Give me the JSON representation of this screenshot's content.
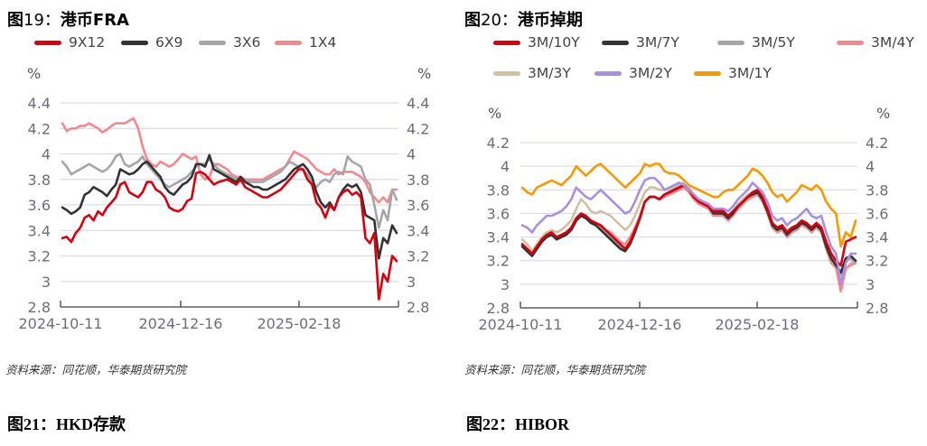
{
  "chart_data": [
    {
      "type": "line",
      "title": "图19：港币FRA",
      "ylabel_left": "%",
      "ylabel_right": "%",
      "ylim": [
        2.8,
        4.4
      ],
      "yticks": [
        "4.4",
        "4.2",
        "4",
        "3.8",
        "3.6",
        "3.4",
        "3.2",
        "3",
        "2.8"
      ],
      "xticks": [
        "2024-10-11",
        "2024-12-16",
        "2025-02-18"
      ],
      "grid": true,
      "legend_position": "top",
      "series": [
        {
          "name": "9X12",
          "color": "#d7000f",
          "values": [
            3.34,
            3.35,
            3.31,
            3.38,
            3.42,
            3.5,
            3.52,
            3.48,
            3.55,
            3.52,
            3.58,
            3.62,
            3.66,
            3.76,
            3.78,
            3.7,
            3.68,
            3.66,
            3.7,
            3.78,
            3.78,
            3.72,
            3.7,
            3.66,
            3.58,
            3.56,
            3.55,
            3.57,
            3.63,
            3.65,
            3.85,
            3.86,
            3.84,
            3.8,
            3.76,
            3.78,
            3.79,
            3.8,
            3.78,
            3.76,
            3.8,
            3.74,
            3.72,
            3.7,
            3.68,
            3.66,
            3.66,
            3.68,
            3.7,
            3.72,
            3.76,
            3.8,
            3.84,
            3.88,
            3.88,
            3.8,
            3.76,
            3.62,
            3.58,
            3.5,
            3.6,
            3.56,
            3.66,
            3.7,
            3.72,
            3.68,
            3.7,
            3.66,
            3.34,
            3.3,
            3.38,
            2.86,
            3.06,
            3.0,
            3.2,
            3.16
          ]
        },
        {
          "name": "6X9",
          "color": "#333333",
          "values": [
            3.58,
            3.56,
            3.53,
            3.55,
            3.58,
            3.68,
            3.7,
            3.74,
            3.72,
            3.7,
            3.67,
            3.72,
            3.76,
            3.88,
            3.86,
            3.84,
            3.85,
            3.88,
            3.92,
            3.94,
            3.9,
            3.86,
            3.82,
            3.74,
            3.7,
            3.68,
            3.72,
            3.76,
            3.78,
            3.82,
            3.92,
            3.92,
            3.9,
            3.99,
            3.88,
            3.86,
            3.84,
            3.82,
            3.8,
            3.78,
            3.82,
            3.78,
            3.76,
            3.74,
            3.74,
            3.72,
            3.72,
            3.74,
            3.76,
            3.78,
            3.8,
            3.84,
            3.88,
            3.9,
            3.92,
            3.88,
            3.82,
            3.7,
            3.62,
            3.58,
            3.62,
            3.56,
            3.66,
            3.72,
            3.76,
            3.74,
            3.76,
            3.7,
            3.52,
            3.5,
            3.48,
            3.18,
            3.34,
            3.3,
            3.44,
            3.38
          ]
        },
        {
          "name": "3X6",
          "color": "#a6a6a6",
          "values": [
            3.94,
            3.9,
            3.84,
            3.86,
            3.88,
            3.9,
            3.92,
            3.9,
            3.88,
            3.86,
            3.88,
            3.92,
            3.98,
            4.0,
            3.92,
            3.9,
            3.92,
            3.94,
            3.98,
            3.92,
            3.88,
            3.84,
            3.8,
            3.76,
            3.74,
            3.76,
            3.78,
            3.8,
            3.82,
            3.86,
            3.9,
            3.92,
            3.92,
            3.96,
            3.92,
            3.88,
            3.86,
            3.84,
            3.82,
            3.8,
            3.82,
            3.8,
            3.78,
            3.78,
            3.78,
            3.78,
            3.8,
            3.82,
            3.84,
            3.86,
            3.9,
            3.94,
            3.92,
            3.9,
            3.88,
            3.84,
            3.78,
            3.74,
            3.78,
            3.8,
            3.78,
            3.84,
            3.86,
            3.84,
            3.98,
            3.94,
            3.92,
            3.9,
            3.8,
            3.76,
            3.6,
            3.42,
            3.56,
            3.48,
            3.72,
            3.64
          ]
        },
        {
          "name": "1X4",
          "color": "#f4888f",
          "values": [
            4.24,
            4.18,
            4.2,
            4.2,
            4.22,
            4.22,
            4.24,
            4.22,
            4.2,
            4.17,
            4.19,
            4.22,
            4.24,
            4.24,
            4.24,
            4.26,
            4.28,
            4.2,
            4.06,
            3.96,
            3.92,
            3.9,
            3.94,
            3.92,
            3.9,
            3.92,
            3.96,
            4.0,
            3.98,
            3.96,
            3.98,
            3.84,
            3.8,
            3.82,
            3.92,
            3.92,
            3.9,
            3.88,
            3.84,
            3.82,
            3.82,
            3.8,
            3.8,
            3.8,
            3.8,
            3.8,
            3.82,
            3.84,
            3.86,
            3.88,
            3.9,
            3.96,
            4.02,
            4.0,
            3.98,
            3.96,
            3.92,
            3.88,
            3.86,
            3.84,
            3.84,
            3.88,
            3.84,
            3.86,
            3.86,
            3.86,
            3.84,
            3.82,
            3.78,
            3.7,
            3.66,
            3.62,
            3.66,
            3.62,
            3.72,
            3.72
          ]
        }
      ]
    },
    {
      "type": "line",
      "title": "图20：港币掉期",
      "ylabel_left": "%",
      "ylabel_right": "%",
      "ylim": [
        2.8,
        4.2
      ],
      "yticks": [
        "4.2",
        "4",
        "3.8",
        "3.6",
        "3.4",
        "3.2",
        "3",
        "2.8"
      ],
      "xticks": [
        "2024-10-11",
        "2024-12-16",
        "2025-02-18"
      ],
      "grid": true,
      "legend_position": "top",
      "series": [
        {
          "name": "3M/10Y",
          "color": "#d7000f",
          "values": [
            3.34,
            3.3,
            3.26,
            3.32,
            3.38,
            3.42,
            3.44,
            3.4,
            3.42,
            3.44,
            3.48,
            3.56,
            3.6,
            3.58,
            3.54,
            3.52,
            3.5,
            3.46,
            3.42,
            3.38,
            3.34,
            3.3,
            3.36,
            3.46,
            3.56,
            3.7,
            3.74,
            3.74,
            3.72,
            3.76,
            3.78,
            3.8,
            3.82,
            3.84,
            3.8,
            3.74,
            3.7,
            3.68,
            3.66,
            3.62,
            3.62,
            3.62,
            3.58,
            3.62,
            3.66,
            3.7,
            3.74,
            3.78,
            3.8,
            3.74,
            3.64,
            3.52,
            3.48,
            3.5,
            3.44,
            3.48,
            3.5,
            3.54,
            3.52,
            3.48,
            3.52,
            3.48,
            3.36,
            3.26,
            3.2,
            3.16,
            3.36,
            3.38,
            3.4
          ]
        },
        {
          "name": "3M/7Y",
          "color": "#333333",
          "values": [
            3.32,
            3.28,
            3.24,
            3.3,
            3.36,
            3.4,
            3.42,
            3.38,
            3.4,
            3.42,
            3.46,
            3.54,
            3.58,
            3.56,
            3.52,
            3.5,
            3.46,
            3.42,
            3.38,
            3.34,
            3.3,
            3.28,
            3.34,
            3.44,
            3.56,
            3.7,
            3.74,
            3.74,
            3.72,
            3.76,
            3.78,
            3.8,
            3.82,
            3.84,
            3.8,
            3.74,
            3.7,
            3.68,
            3.66,
            3.6,
            3.6,
            3.6,
            3.56,
            3.6,
            3.66,
            3.7,
            3.74,
            3.76,
            3.78,
            3.72,
            3.62,
            3.5,
            3.46,
            3.48,
            3.42,
            3.46,
            3.48,
            3.52,
            3.5,
            3.46,
            3.5,
            3.46,
            3.32,
            3.22,
            3.16,
            3.1,
            3.22,
            3.24,
            3.2
          ]
        },
        {
          "name": "3M/5Y",
          "color": "#a6a6a6",
          "values": [
            3.32,
            3.28,
            3.24,
            3.3,
            3.36,
            3.4,
            3.42,
            3.38,
            3.4,
            3.42,
            3.46,
            3.54,
            3.58,
            3.56,
            3.52,
            3.5,
            3.48,
            3.44,
            3.4,
            3.36,
            3.32,
            3.3,
            3.36,
            3.46,
            3.56,
            3.7,
            3.74,
            3.74,
            3.72,
            3.76,
            3.78,
            3.8,
            3.82,
            3.84,
            3.8,
            3.74,
            3.7,
            3.68,
            3.66,
            3.6,
            3.6,
            3.6,
            3.56,
            3.6,
            3.66,
            3.7,
            3.74,
            3.76,
            3.78,
            3.72,
            3.62,
            3.5,
            3.46,
            3.48,
            3.42,
            3.46,
            3.48,
            3.52,
            3.5,
            3.46,
            3.5,
            3.46,
            3.32,
            3.22,
            3.16,
            3.08,
            3.2,
            3.22,
            3.18
          ]
        },
        {
          "name": "3M/4Y",
          "color": "#f4888f",
          "values": [
            3.32,
            3.28,
            3.24,
            3.3,
            3.36,
            3.4,
            3.42,
            3.38,
            3.4,
            3.42,
            3.46,
            3.54,
            3.58,
            3.56,
            3.52,
            3.52,
            3.5,
            3.46,
            3.44,
            3.4,
            3.36,
            3.34,
            3.4,
            3.48,
            3.58,
            3.7,
            3.74,
            3.74,
            3.72,
            3.74,
            3.76,
            3.78,
            3.8,
            3.82,
            3.78,
            3.72,
            3.68,
            3.66,
            3.64,
            3.58,
            3.58,
            3.58,
            3.54,
            3.58,
            3.64,
            3.68,
            3.72,
            3.74,
            3.76,
            3.7,
            3.6,
            3.48,
            3.44,
            3.46,
            3.4,
            3.44,
            3.46,
            3.5,
            3.48,
            3.44,
            3.48,
            3.44,
            3.3,
            3.18,
            3.14,
            2.94,
            3.14,
            3.16,
            3.18
          ]
        },
        {
          "name": "3M/3Y",
          "color": "#d3c0a1",
          "values": [
            3.38,
            3.34,
            3.28,
            3.34,
            3.4,
            3.44,
            3.46,
            3.44,
            3.46,
            3.5,
            3.54,
            3.64,
            3.72,
            3.68,
            3.62,
            3.6,
            3.62,
            3.6,
            3.58,
            3.54,
            3.5,
            3.46,
            3.5,
            3.58,
            3.68,
            3.78,
            3.82,
            3.82,
            3.8,
            3.8,
            3.8,
            3.82,
            3.84,
            3.86,
            3.82,
            3.76,
            3.72,
            3.7,
            3.68,
            3.62,
            3.62,
            3.62,
            3.58,
            3.62,
            3.68,
            3.72,
            3.76,
            3.78,
            3.8,
            3.74,
            3.64,
            3.52,
            3.48,
            3.5,
            3.46,
            3.48,
            3.5,
            3.54,
            3.52,
            3.48,
            3.52,
            3.48,
            3.34,
            3.22,
            3.18,
            2.96,
            3.12,
            3.18,
            3.2
          ]
        },
        {
          "name": "3M/2Y",
          "color": "#a88fe0",
          "values": [
            3.5,
            3.48,
            3.44,
            3.5,
            3.54,
            3.58,
            3.58,
            3.6,
            3.62,
            3.66,
            3.72,
            3.82,
            3.78,
            3.74,
            3.72,
            3.76,
            3.8,
            3.76,
            3.72,
            3.68,
            3.64,
            3.6,
            3.62,
            3.7,
            3.8,
            3.88,
            3.9,
            3.9,
            3.86,
            3.8,
            3.82,
            3.84,
            3.86,
            3.84,
            3.8,
            3.76,
            3.72,
            3.7,
            3.68,
            3.64,
            3.64,
            3.64,
            3.62,
            3.66,
            3.72,
            3.76,
            3.8,
            3.86,
            3.82,
            3.78,
            3.7,
            3.58,
            3.54,
            3.56,
            3.5,
            3.54,
            3.56,
            3.6,
            3.64,
            3.58,
            3.56,
            3.58,
            3.44,
            3.32,
            3.26,
            3.0,
            3.18,
            3.26,
            3.26
          ]
        },
        {
          "name": "3M/1Y",
          "color": "#f59a00",
          "values": [
            3.82,
            3.78,
            3.76,
            3.82,
            3.84,
            3.86,
            3.88,
            3.86,
            3.84,
            3.88,
            3.92,
            4.0,
            3.96,
            3.92,
            3.96,
            4.0,
            4.02,
            3.98,
            3.94,
            3.9,
            3.86,
            3.82,
            3.86,
            3.9,
            3.94,
            4.02,
            4.0,
            4.02,
            4.02,
            3.96,
            3.94,
            3.94,
            3.92,
            3.88,
            3.84,
            3.82,
            3.8,
            3.78,
            3.76,
            3.74,
            3.74,
            3.78,
            3.8,
            3.8,
            3.84,
            3.88,
            3.92,
            3.98,
            3.96,
            3.92,
            3.86,
            3.78,
            3.74,
            3.76,
            3.7,
            3.74,
            3.78,
            3.84,
            3.82,
            3.8,
            3.84,
            3.8,
            3.7,
            3.64,
            3.6,
            3.32,
            3.44,
            3.4,
            3.54
          ]
        }
      ]
    }
  ],
  "panels": {
    "p1": {
      "title_prefix": "图",
      "title_num": "19：",
      "title_text": "港币FRA",
      "pct_left": "%",
      "pct_right": "%",
      "source": "资料来源：同花顺，华泰期货研究院"
    },
    "p2": {
      "title_prefix": "图",
      "title_num": "20：",
      "title_text": "港币掉期",
      "pct_left": "%",
      "pct_right": "%",
      "source": "资料来源：同花顺，华泰期货研究院"
    },
    "p3": {
      "title": "图21：HKD存款"
    },
    "p4": {
      "title": "图22：HIBOR"
    }
  }
}
